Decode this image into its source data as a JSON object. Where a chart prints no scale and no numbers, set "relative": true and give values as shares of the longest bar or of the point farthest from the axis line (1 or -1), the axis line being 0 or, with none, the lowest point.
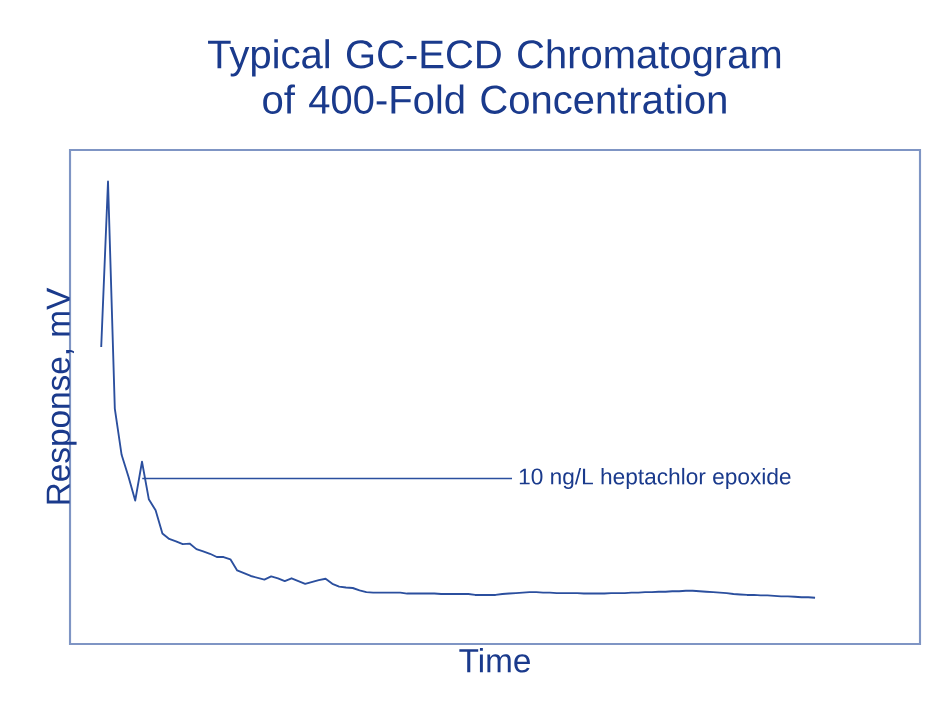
{
  "chart_data": {
    "type": "line",
    "title": "Typical GC-ECD Chromatogram of 400-Fold Concentration",
    "xlabel": "Time",
    "ylabel": "Response, mV",
    "relative": true,
    "categories": [
      null,
      null,
      null,
      null,
      null,
      null,
      null,
      null,
      null,
      null,
      null,
      null,
      null,
      null,
      null,
      null,
      null,
      null,
      null,
      null,
      null,
      null,
      null,
      null,
      null,
      null,
      null,
      null,
      null,
      null,
      null,
      null,
      null,
      null,
      null,
      null,
      null,
      null,
      null,
      null,
      null,
      null,
      null,
      null,
      null,
      null,
      null,
      null,
      null,
      null,
      null,
      null,
      null,
      null,
      null,
      null,
      null,
      null,
      null,
      null,
      null,
      null,
      null,
      null,
      null,
      null,
      null,
      null,
      null,
      null,
      null,
      null,
      null,
      null,
      null,
      null,
      null,
      null,
      null,
      null,
      null,
      null,
      null,
      null,
      null,
      null,
      null,
      null,
      null,
      null,
      null,
      null,
      null,
      null,
      null,
      null,
      null,
      null,
      null,
      null,
      null,
      null,
      null,
      null,
      null,
      null
    ],
    "series": [
      {
        "color": "#2b4f9e",
        "values": [
          0.642,
          1,
          0.509,
          0.409,
          0.362,
          0.31,
          0.394,
          0.313,
          0.289,
          0.239,
          0.227,
          0.222,
          0.216,
          0.217,
          0.205,
          0.2,
          0.195,
          0.188,
          0.188,
          0.183,
          0.159,
          0.153,
          0.147,
          0.143,
          0.139,
          0.146,
          0.142,
          0.136,
          0.142,
          0.136,
          0.13,
          0.134,
          0.138,
          0.141,
          0.13,
          0.124,
          0.122,
          0.121,
          0.116,
          0.112,
          0.111,
          0.111,
          0.111,
          0.111,
          0.111,
          0.109,
          0.109,
          0.109,
          0.109,
          0.109,
          0.108,
          0.108,
          0.108,
          0.108,
          0.108,
          0.106,
          0.106,
          0.106,
          0.106,
          0.108,
          0.109,
          0.11,
          0.111,
          0.112,
          0.112,
          0.111,
          0.111,
          0.11,
          0.11,
          0.11,
          0.11,
          0.109,
          0.109,
          0.109,
          0.109,
          0.11,
          0.11,
          0.11,
          0.111,
          0.111,
          0.112,
          0.112,
          0.113,
          0.113,
          0.114,
          0.114,
          0.115,
          0.115,
          0.114,
          0.113,
          0.112,
          0.111,
          0.11,
          0.108,
          0.107,
          0.106,
          0.106,
          0.105,
          0.105,
          0.104,
          0.103,
          0.103,
          0.102,
          0.101,
          0.101,
          0.1
        ]
      }
    ],
    "annotations": [
      "10 ng/L heptachlor epoxide"
    ]
  }
}
